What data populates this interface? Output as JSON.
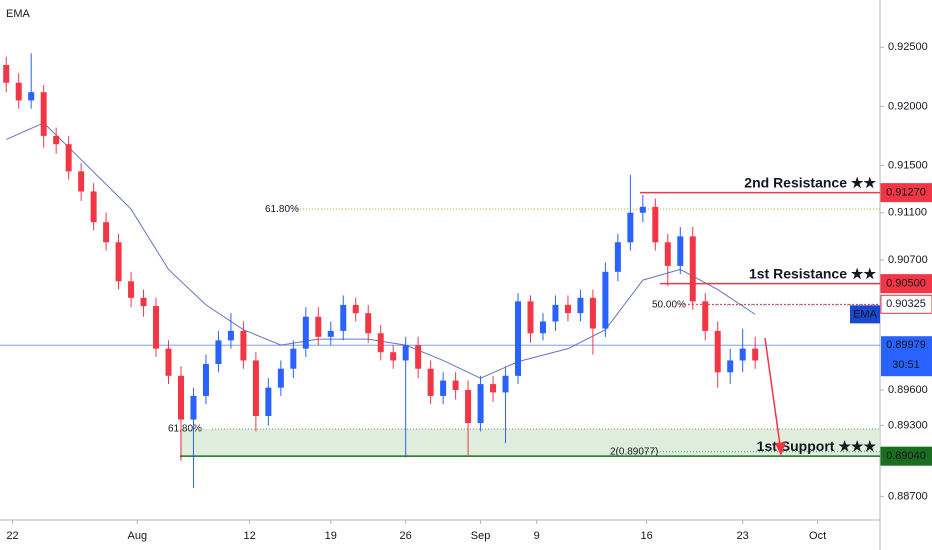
{
  "chart_data": {
    "type": "candlestick",
    "indicator_label": "EMA",
    "xlim": [
      -0.5,
      70
    ],
    "ylim": [
      0.885,
      0.929
    ],
    "xticks": [
      {
        "value": 0.5,
        "label": "22"
      },
      {
        "value": 10.5,
        "label": "Aug"
      },
      {
        "value": 19.5,
        "label": "12"
      },
      {
        "value": 26,
        "label": "19"
      },
      {
        "value": 32,
        "label": "26"
      },
      {
        "value": 38,
        "label": "Sep"
      },
      {
        "value": 42.5,
        "label": "9"
      },
      {
        "value": 51.3,
        "label": "16"
      },
      {
        "value": 59,
        "label": "23"
      },
      {
        "value": 65,
        "label": "Oct"
      }
    ],
    "yticks": [
      {
        "value": 0.925,
        "label": "0.92500"
      },
      {
        "value": 0.92,
        "label": "0.92000"
      },
      {
        "value": 0.915,
        "label": "0.91500"
      },
      {
        "value": 0.911,
        "label": "0.91100"
      },
      {
        "value": 0.907,
        "label": "0.90700"
      },
      {
        "value": 0.896,
        "label": "0.89600"
      },
      {
        "value": 0.893,
        "label": "0.89300"
      },
      {
        "value": 0.887,
        "label": "0.88700"
      }
    ],
    "up_color": "#2962ff",
    "down_color": "#f23645",
    "open": [
      0.9235,
      0.922,
      0.9205,
      0.9212,
      0.9175,
      0.9168,
      0.9145,
      0.9128,
      0.9102,
      0.9085,
      0.9052,
      0.9038,
      0.9031,
      0.8995,
      0.8972,
      0.8935,
      0.8955,
      0.8982,
      0.9002,
      0.901,
      0.8985,
      0.8938,
      0.8962,
      0.8978,
      0.8995,
      0.9022,
      0.9005,
      0.901,
      0.9032,
      0.9025,
      0.9008,
      0.8992,
      0.8985,
      0.8998,
      0.8978,
      0.8955,
      0.8968,
      0.896,
      0.8932,
      0.8965,
      0.8958,
      0.8972,
      0.9035,
      0.9008,
      0.9018,
      0.9032,
      0.9025,
      0.9038,
      0.9012,
      0.906,
      0.9085,
      0.911,
      0.9115,
      0.9085,
      0.9065,
      0.909,
      0.9035,
      0.901,
      0.8975,
      0.8985,
      0.8995
    ],
    "high": [
      0.9242,
      0.9228,
      0.9245,
      0.9218,
      0.9182,
      0.9175,
      0.9152,
      0.9135,
      0.911,
      0.9092,
      0.906,
      0.9045,
      0.9038,
      0.9002,
      0.898,
      0.8962,
      0.899,
      0.901,
      0.9025,
      0.9018,
      0.8992,
      0.897,
      0.8985,
      0.9002,
      0.903,
      0.903,
      0.9018,
      0.904,
      0.9038,
      0.9032,
      0.9015,
      0.8998,
      0.9005,
      0.9005,
      0.8985,
      0.8975,
      0.8975,
      0.8968,
      0.8972,
      0.8972,
      0.898,
      0.9042,
      0.904,
      0.9025,
      0.904,
      0.904,
      0.9045,
      0.9045,
      0.9068,
      0.9092,
      0.9142,
      0.9125,
      0.9122,
      0.9092,
      0.9098,
      0.9098,
      0.9042,
      0.9018,
      0.8995,
      0.9012,
      0.9005
    ],
    "low": [
      0.9212,
      0.9198,
      0.9198,
      0.9165,
      0.916,
      0.9138,
      0.912,
      0.9095,
      0.9078,
      0.9045,
      0.903,
      0.9022,
      0.8988,
      0.8965,
      0.89,
      0.8877,
      0.8948,
      0.8975,
      0.8995,
      0.8978,
      0.8925,
      0.893,
      0.8955,
      0.897,
      0.8988,
      0.8998,
      0.8998,
      0.9002,
      0.9018,
      0.9,
      0.8985,
      0.8978,
      0.8903,
      0.897,
      0.8948,
      0.8948,
      0.8952,
      0.8905,
      0.8925,
      0.895,
      0.8915,
      0.8965,
      0.9,
      0.9002,
      0.901,
      0.9018,
      0.9018,
      0.899,
      0.9005,
      0.9052,
      0.9078,
      0.9102,
      0.9078,
      0.9048,
      0.9058,
      0.9028,
      0.9002,
      0.8962,
      0.8965,
      0.8975,
      0.8978
    ],
    "close": [
      0.922,
      0.9205,
      0.9212,
      0.9175,
      0.9168,
      0.9145,
      0.9128,
      0.9102,
      0.9085,
      0.9052,
      0.9038,
      0.9031,
      0.8995,
      0.8972,
      0.8935,
      0.8955,
      0.8982,
      0.9002,
      0.901,
      0.8985,
      0.8938,
      0.8962,
      0.8978,
      0.8995,
      0.9022,
      0.9005,
      0.901,
      0.9032,
      0.9025,
      0.9008,
      0.8992,
      0.8985,
      0.8998,
      0.8978,
      0.8955,
      0.8968,
      0.896,
      0.8932,
      0.8965,
      0.8958,
      0.8972,
      0.9035,
      0.9008,
      0.9018,
      0.9032,
      0.9025,
      0.9038,
      0.9012,
      0.906,
      0.9085,
      0.911,
      0.9115,
      0.9085,
      0.9065,
      0.909,
      0.9035,
      0.901,
      0.8975,
      0.8985,
      0.8995,
      0.8985
    ],
    "ema": {
      "name": "EMA",
      "color": "#3f51b5",
      "x": [
        0,
        3,
        6,
        10,
        13,
        16,
        19,
        22,
        25,
        29,
        32,
        35,
        38,
        41,
        45,
        48,
        51,
        54,
        57,
        60
      ],
      "values": [
        0.9172,
        0.9186,
        0.9155,
        0.9113,
        0.9062,
        0.9032,
        0.9011,
        0.8998,
        0.9003,
        0.9003,
        0.8998,
        0.8985,
        0.897,
        0.8984,
        0.8995,
        0.9011,
        0.9053,
        0.9062,
        0.9045,
        0.9024
      ]
    },
    "zone": {
      "values": [
        0.8904,
        0.8927
      ],
      "color": "#d7ead3"
    },
    "fib": [
      {
        "value": 0.9113,
        "label": "61.80%",
        "color": "#c9a227"
      },
      {
        "value": 0.9032,
        "label": "50.00%",
        "color": "#3d85c6"
      },
      {
        "value": 0.8927,
        "label": "61.80%",
        "color": "#888888"
      },
      {
        "value": 0.89077,
        "label": "2(0.89077)",
        "color": "#2e9e5a"
      }
    ],
    "levels": [
      {
        "name": "2nd Resistance ★★",
        "value": 0.9127,
        "label": "0.91270",
        "color": "#f23645"
      },
      {
        "name": "1st Resistance ★★",
        "value": 0.905,
        "label": "0.90500",
        "color": "#f23645"
      },
      {
        "value": 0.90325,
        "label": "0.90325",
        "color": "#f23645",
        "style": "dotted"
      },
      {
        "name": "1st Support ★★★",
        "value": 0.8904,
        "label": "0.89040",
        "color": "#1b6e1f"
      }
    ],
    "current": {
      "value": 0.89979,
      "label": "0.89979",
      "countdown": "30:51",
      "color": "#2962ff"
    }
  }
}
